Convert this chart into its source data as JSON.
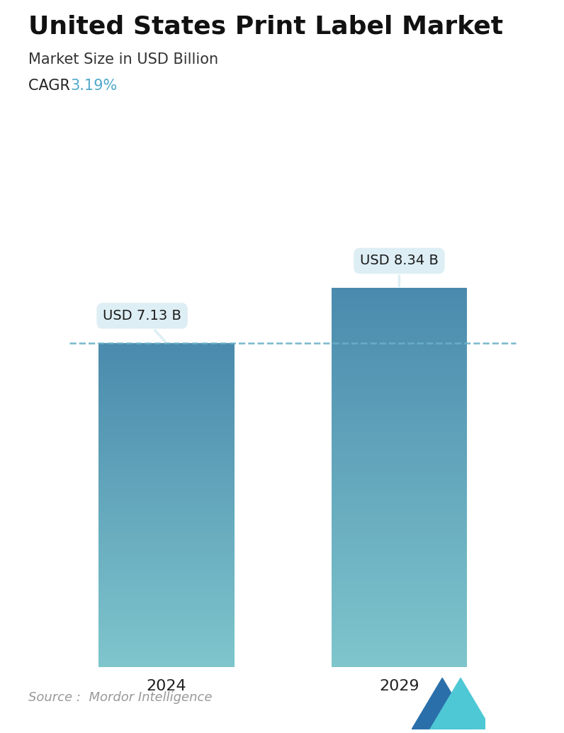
{
  "title": "United States Print Label Market",
  "subtitle": "Market Size in USD Billion",
  "cagr_label": "CAGR ",
  "cagr_value": "3.19%",
  "cagr_color": "#4ea8c9",
  "categories": [
    "2024",
    "2029"
  ],
  "values": [
    7.13,
    8.34
  ],
  "bar_labels": [
    "USD 7.13 B",
    "USD 8.34 B"
  ],
  "bar_top_color": "#4a8aad",
  "bar_bottom_color": "#7ec5cc",
  "dashed_line_color": "#6ab0c8",
  "background_color": "#ffffff",
  "source_text": "Source :  Mordor Intelligence",
  "title_fontsize": 26,
  "subtitle_fontsize": 15,
  "cagr_fontsize": 15,
  "bar_label_fontsize": 14,
  "xtick_fontsize": 16,
  "source_fontsize": 13,
  "ylim": [
    0,
    10
  ],
  "callout_bg_color": "#ddeef4",
  "callout_text_color": "#1a1a1a",
  "logo_teal": "#4ec8d4",
  "logo_blue": "#2a6faa"
}
